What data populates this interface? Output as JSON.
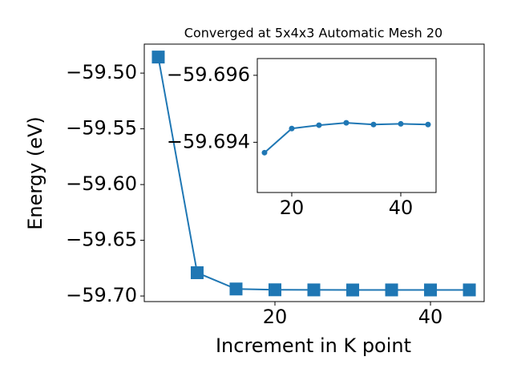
{
  "chart_data": [
    {
      "type": "line",
      "title": "Converged at 5x4x3 Automatic Mesh 20",
      "xlabel": "Increment in K point",
      "ylabel": "Energy (eV)",
      "x": [
        5,
        10,
        15,
        20,
        25,
        30,
        35,
        40,
        45
      ],
      "series": [
        {
          "color": "#1f77b4",
          "marker": "square",
          "values": [
            -59.4856,
            -59.6791,
            -59.69369,
            -59.69441,
            -59.69451,
            -59.69458,
            -59.69453,
            -59.69455,
            -59.69453
          ]
        }
      ],
      "xlim": [
        3.2,
        46.9
      ],
      "ylim": [
        -59.705,
        -59.474
      ],
      "xticks": [
        20,
        40
      ],
      "yticks": [
        {
          "value": -59.7,
          "label": "−59.70"
        },
        {
          "value": -59.65,
          "label": "−59.65"
        },
        {
          "value": -59.6,
          "label": "−59.60"
        },
        {
          "value": -59.55,
          "label": "−59.55"
        },
        {
          "value": -59.5,
          "label": "−59.50"
        }
      ]
    },
    {
      "type": "line",
      "x": [
        15,
        20,
        25,
        30,
        35,
        40,
        45
      ],
      "series": [
        {
          "color": "#1f77b4",
          "marker": "circle",
          "values": [
            -59.69369,
            -59.69441,
            -59.69451,
            -59.69458,
            -59.69453,
            -59.69455,
            -59.69453
          ]
        }
      ],
      "xlim": [
        13.68,
        46.47
      ],
      "ylim": [
        -59.6925,
        -59.6965
      ],
      "xticks": [
        20,
        40
      ],
      "yticks": [
        {
          "value": -59.694,
          "label": "−59.694"
        },
        {
          "value": -59.696,
          "label": "−59.696"
        }
      ]
    }
  ]
}
